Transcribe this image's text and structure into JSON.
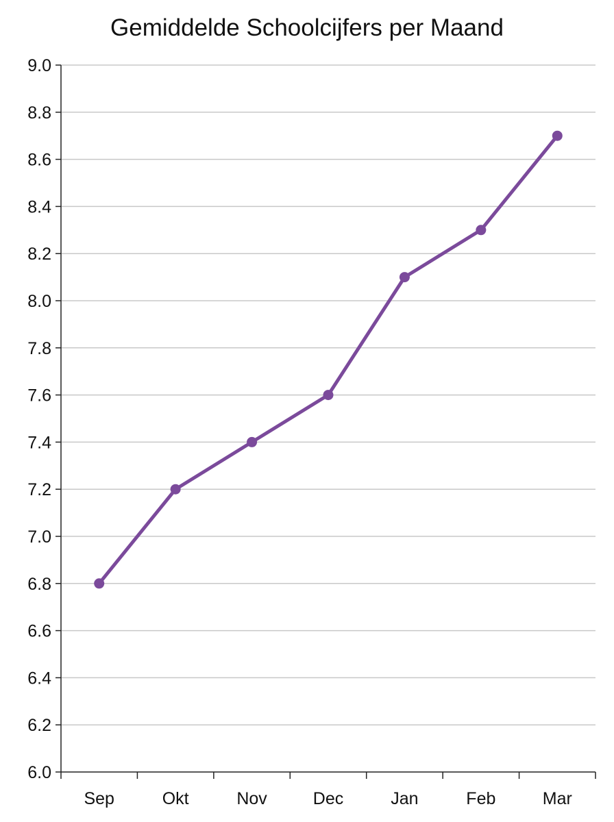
{
  "chart_data": {
    "type": "line",
    "title": "Gemiddelde Schoolcijfers per Maand",
    "xlabel": "",
    "ylabel": "",
    "categories": [
      "Sep",
      "Okt",
      "Nov",
      "Dec",
      "Jan",
      "Feb",
      "Mar"
    ],
    "values": [
      6.8,
      7.2,
      7.4,
      7.6,
      8.1,
      8.3,
      8.7
    ],
    "ylim": [
      6.0,
      9.0
    ],
    "yticks": [
      "6.0",
      "6.2",
      "6.4",
      "6.6",
      "6.8",
      "7.0",
      "7.2",
      "7.4",
      "7.6",
      "7.8",
      "8.0",
      "8.2",
      "8.4",
      "8.6",
      "8.8",
      "9.0"
    ],
    "grid": "horizontal",
    "legend": "none",
    "colors": {
      "line": "#7b4a9b",
      "grid": "#c8c8c8",
      "axis": "#222222"
    }
  }
}
